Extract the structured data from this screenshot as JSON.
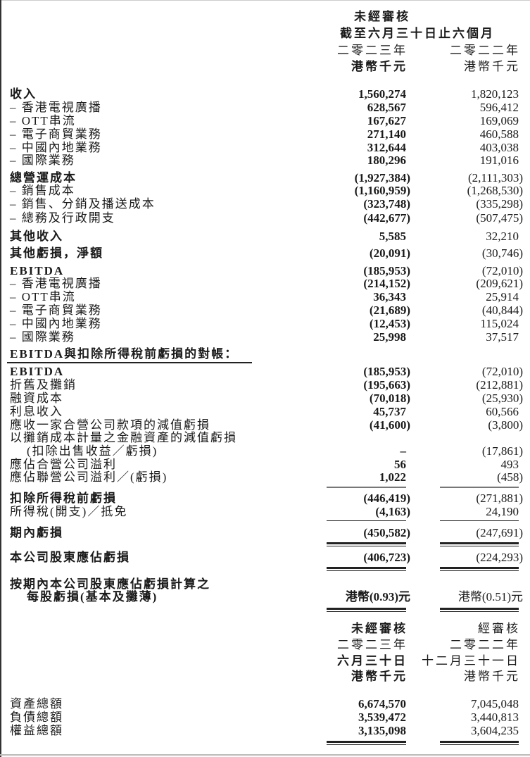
{
  "header_top": {
    "status": "未經審核",
    "period": "截至六月三十日止六個月",
    "year_current": "二零二三年",
    "year_prior": "二零二二年",
    "unit_current": "港幣千元",
    "unit_prior": "港幣千元"
  },
  "income_rows": [
    {
      "label": "收入",
      "bold": true,
      "indent": false,
      "current": "1,560,274",
      "prior": "1,820,123"
    },
    {
      "label": "– 香港電視廣播",
      "bold": false,
      "indent": false,
      "current": "628,567",
      "prior": "596,412"
    },
    {
      "label": "– OTT串流",
      "bold": false,
      "indent": false,
      "current": "167,627",
      "prior": "169,069"
    },
    {
      "label": "– 電子商貿業務",
      "bold": false,
      "indent": false,
      "current": "271,140",
      "prior": "460,588"
    },
    {
      "label": "– 中國內地業務",
      "bold": false,
      "indent": false,
      "current": "312,644",
      "prior": "403,038"
    },
    {
      "label": "– 國際業務",
      "bold": false,
      "indent": false,
      "current": "180,296",
      "prior": "191,016"
    },
    {
      "label": "總營運成本",
      "bold": true,
      "indent": false,
      "current": "(1,927,384)",
      "prior": "(2,111,303)"
    },
    {
      "label": "– 銷售成本",
      "bold": false,
      "indent": false,
      "current": "(1,160,959)",
      "prior": "(1,268,530)"
    },
    {
      "label": "– 銷售、分銷及播送成本",
      "bold": false,
      "indent": false,
      "current": "(323,748)",
      "prior": "(335,298)"
    },
    {
      "label": "– 總務及行政開支",
      "bold": false,
      "indent": false,
      "current": "(442,677)",
      "prior": "(507,475)"
    },
    {
      "label": "其他收入",
      "bold": true,
      "indent": false,
      "current": "5,585",
      "prior": "32,210"
    },
    {
      "label": "其他虧損，淨額",
      "bold": true,
      "indent": false,
      "current": "(20,091)",
      "prior": "(30,746)"
    },
    {
      "label": "EBITDA",
      "bold": true,
      "indent": false,
      "current": "(185,953)",
      "prior": "(72,010)"
    },
    {
      "label": "– 香港電視廣播",
      "bold": false,
      "indent": false,
      "current": "(214,152)",
      "prior": "(209,621)"
    },
    {
      "label": "– OTT串流",
      "bold": false,
      "indent": false,
      "current": "36,343",
      "prior": "25,914"
    },
    {
      "label": "– 電子商貿業務",
      "bold": false,
      "indent": false,
      "current": "(21,689)",
      "prior": "(40,844)"
    },
    {
      "label": "– 中國內地業務",
      "bold": false,
      "indent": false,
      "current": "(12,453)",
      "prior": "115,024"
    },
    {
      "label": "– 國際業務",
      "bold": false,
      "indent": false,
      "current": "25,998",
      "prior": "37,517"
    },
    {
      "label": "EBITDA與扣除所得稅前虧損的對帳：",
      "bold": true,
      "indent": false,
      "current": "",
      "prior": ""
    },
    {
      "label": "EBITDA",
      "bold": true,
      "indent": false,
      "current": "(185,953)",
      "prior": "(72,010)"
    },
    {
      "label": "折舊及攤銷",
      "bold": false,
      "indent": false,
      "current": "(195,663)",
      "prior": "(212,881)"
    },
    {
      "label": "融資成本",
      "bold": false,
      "indent": false,
      "current": "(70,018)",
      "prior": "(25,930)"
    },
    {
      "label": "利息收入",
      "bold": false,
      "indent": false,
      "current": "45,737",
      "prior": "60,566"
    },
    {
      "label": "應收一家合營公司款項的減值虧損",
      "bold": false,
      "indent": false,
      "current": "(41,600)",
      "prior": "(3,800)"
    },
    {
      "label": "以攤銷成本計量之金融資產的減值虧損",
      "bold": false,
      "indent": false,
      "current": "",
      "prior": ""
    },
    {
      "label": "(扣除出售收益／虧損)",
      "bold": false,
      "indent": true,
      "current": "–",
      "prior": "(17,861)"
    },
    {
      "label": "應佔合營公司溢利",
      "bold": false,
      "indent": false,
      "current": "56",
      "prior": "493"
    },
    {
      "label": "應佔聯營公司溢利／(虧損)",
      "bold": false,
      "indent": false,
      "current": "1,022",
      "prior": "(458)"
    },
    {
      "label": "扣除所得稅前虧損",
      "bold": true,
      "indent": false,
      "current": "(446,419)",
      "prior": "(271,881)"
    },
    {
      "label": "所得稅(開支)／抵免",
      "bold": false,
      "indent": false,
      "current": "(4,163)",
      "prior": "24,190"
    },
    {
      "label": "期內虧損",
      "bold": true,
      "indent": false,
      "current": "(450,582)",
      "prior": "(247,691)"
    },
    {
      "label": "本公司股東應佔虧損",
      "bold": true,
      "indent": false,
      "current": "(406,723)",
      "prior": "(224,293)"
    },
    {
      "label": "按期內本公司股東應佔虧損計算之",
      "bold": true,
      "indent": false,
      "current": "",
      "prior": ""
    },
    {
      "label": "每股虧損(基本及攤薄)",
      "bold": true,
      "indent": true,
      "current": "港幣(0.93)元",
      "prior": "港幣(0.51)元"
    }
  ],
  "header_bottom": {
    "status_current": "未經審核",
    "status_prior": "經審核",
    "year_current": "二零二三年",
    "year_prior": "二零二二年",
    "date_current": "六月三十日",
    "date_prior": "十二月三十一日",
    "unit_current": "港幣千元",
    "unit_prior": "港幣千元"
  },
  "balance_rows": [
    {
      "label": "資產總額",
      "bold": false,
      "indent": false,
      "current": "6,674,570",
      "prior": "7,045,048"
    },
    {
      "label": "負債總額",
      "bold": false,
      "indent": false,
      "current": "3,539,472",
      "prior": "3,440,813"
    },
    {
      "label": "權益總額",
      "bold": false,
      "indent": false,
      "current": "3,135,098",
      "prior": "3,604,235"
    }
  ]
}
